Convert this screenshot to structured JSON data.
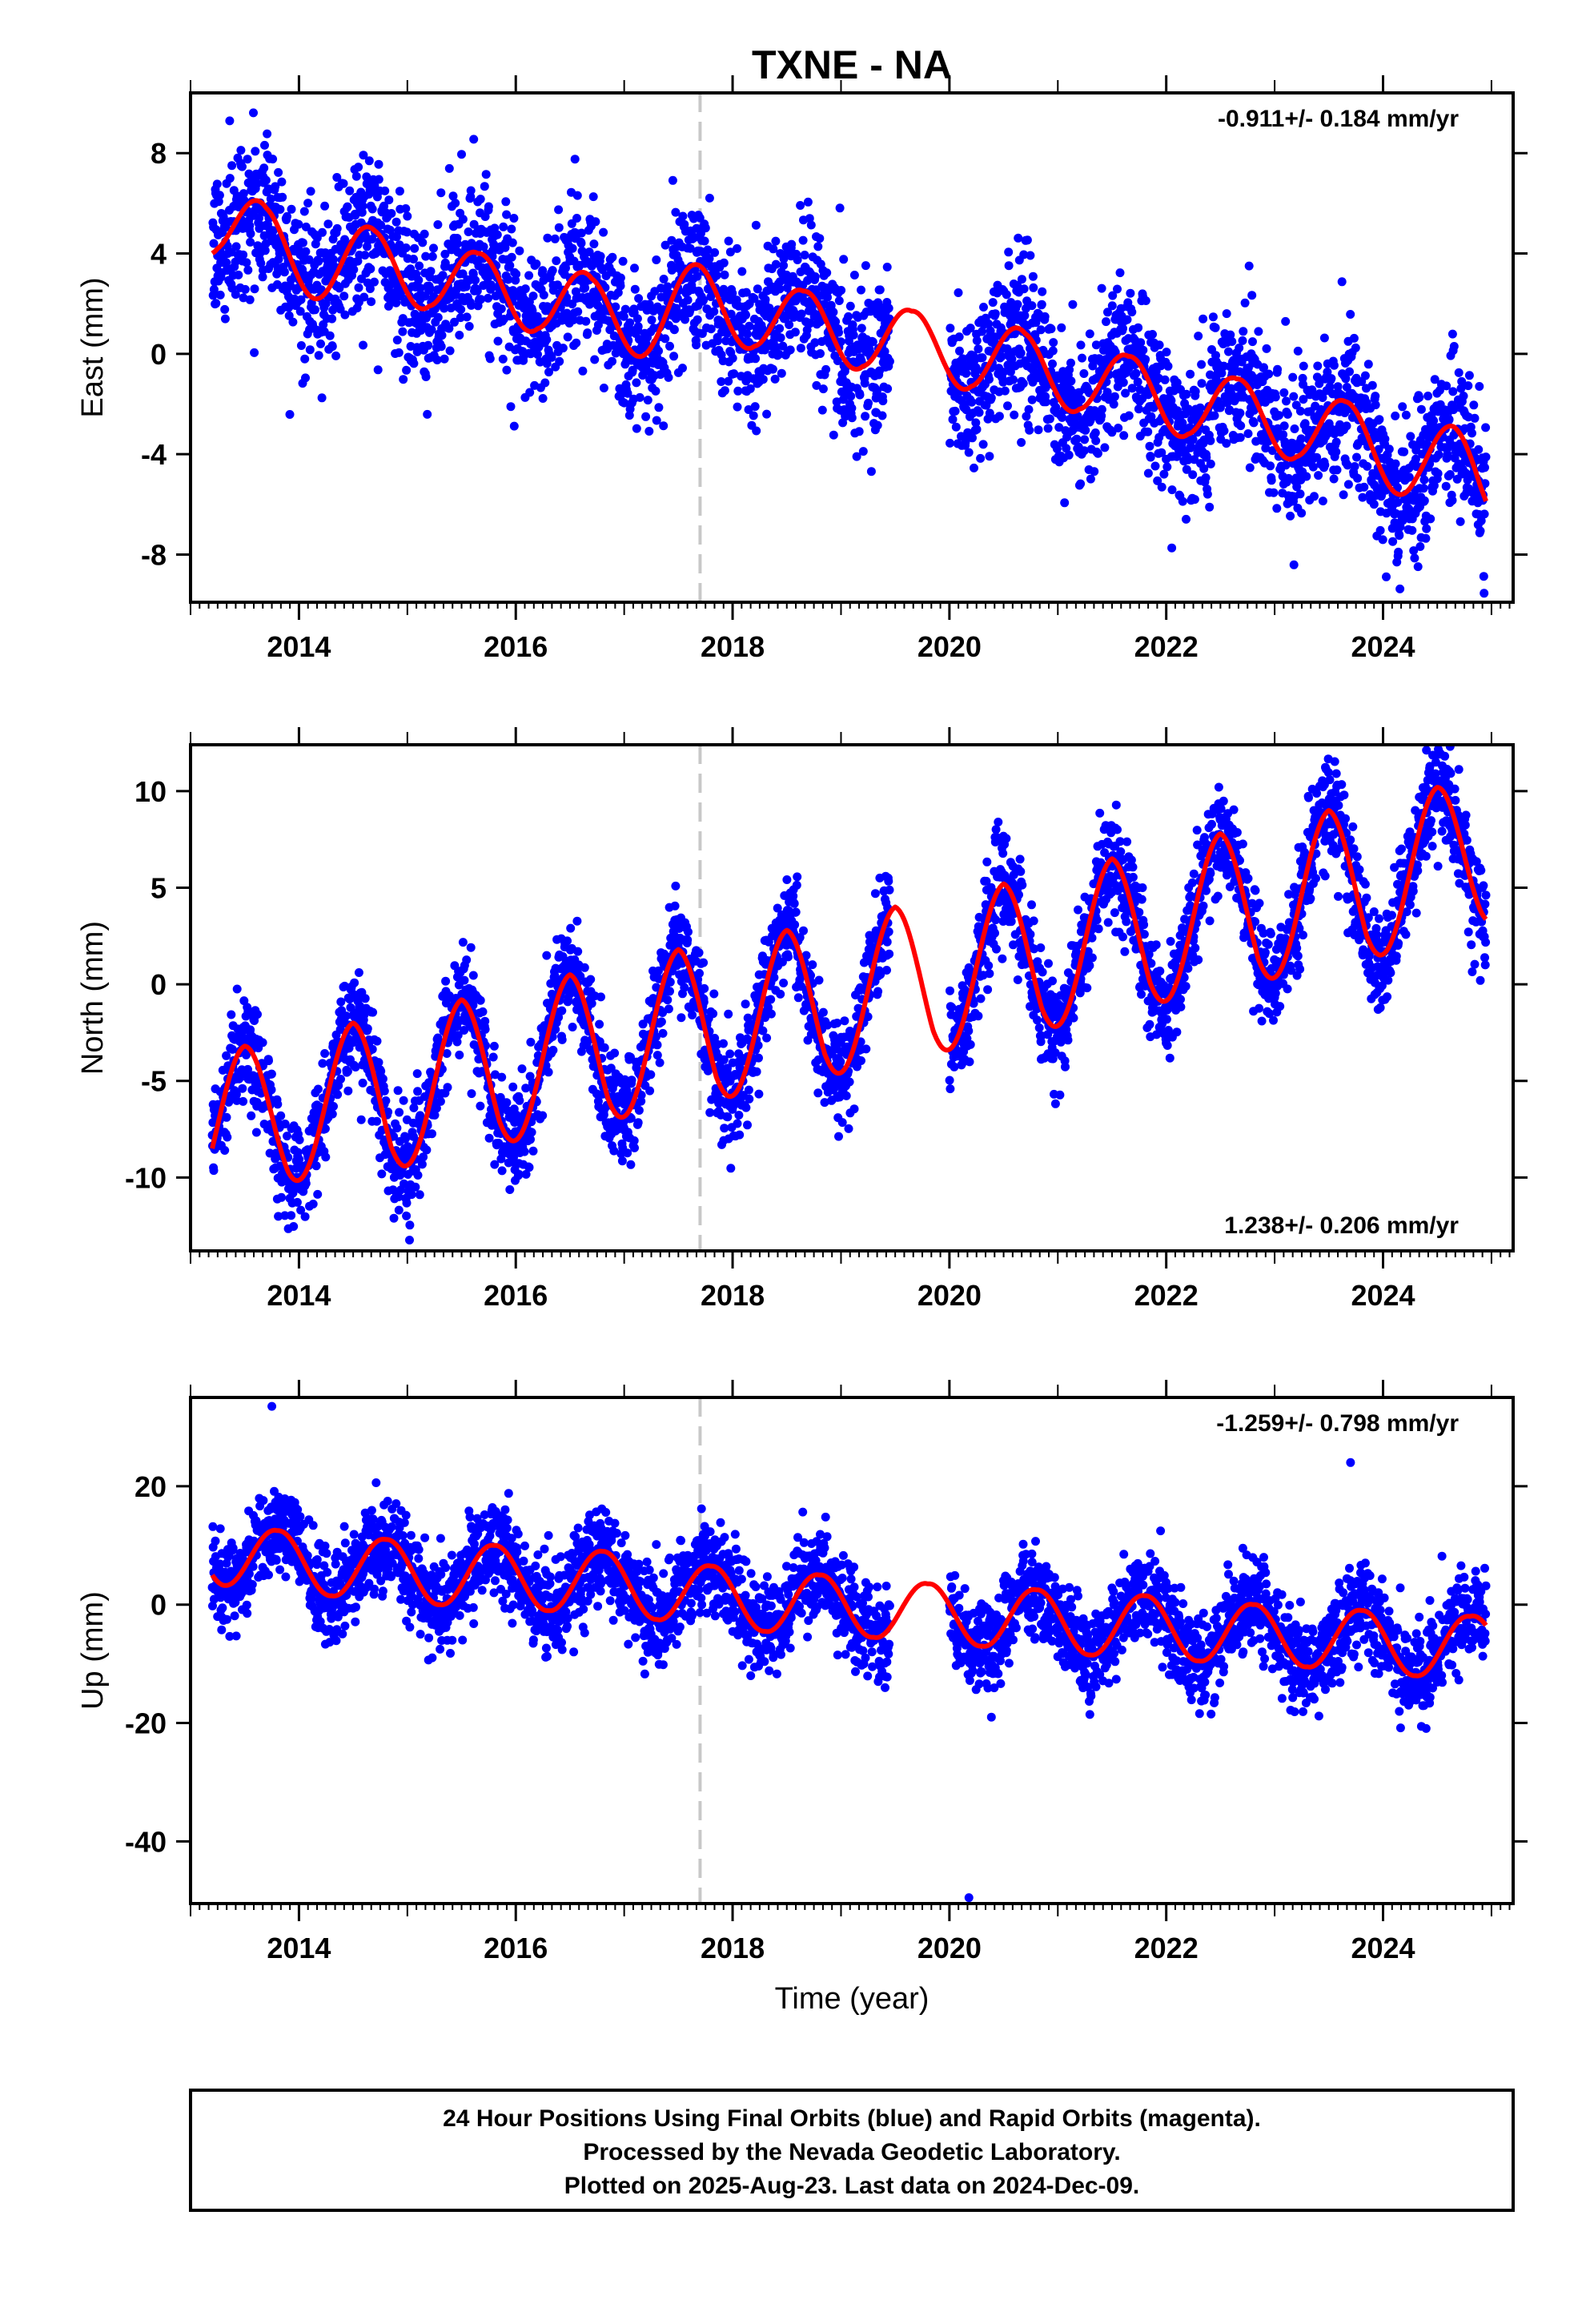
{
  "chart_data": [
    {
      "type": "scatter",
      "title": "TXNE - NA",
      "ylabel": "East (mm)",
      "xlabel": "",
      "xlim": [
        2013.0,
        2025.2
      ],
      "ylim": [
        -9.9,
        10.4
      ],
      "xticks": [
        2014,
        2016,
        2018,
        2020,
        2022,
        2024
      ],
      "xtick_labels": [
        "2014",
        "2016",
        "2018",
        "2020",
        "2022",
        "2024"
      ],
      "yticks": [
        -8,
        -4,
        0,
        4,
        8
      ],
      "ytick_labels": [
        "-8",
        "-4",
        "0",
        "4",
        "8"
      ],
      "rate_text": "-0.911+/- 0.184 mm/yr",
      "rate_position": "top-right",
      "equipment_change_line": 2017.7,
      "colors": {
        "points": "#0000ff",
        "model": "#ff0000",
        "change_line": "#c8c8c8"
      },
      "data_gap": [
        2019.45,
        2020.0
      ],
      "points_note": "approximately 4100 daily positions; regenerated from the trend + seasonal model with scatter",
      "model": {
        "start": 2013.2,
        "end": 2024.95,
        "rate": -0.911,
        "offset_at_start": 4.2,
        "seasonal_amplitude": 1.7,
        "seasonal_phase_peak": 0.65,
        "noise_sd": 1.5
      },
      "series": [
        {
          "values_x": [
            2013.25,
            2013.7,
            2014.3,
            2014.7,
            2015.2,
            2015.65,
            2016.2,
            2016.7,
            2017.2,
            2017.7,
            2018.2,
            2018.65,
            2019.2,
            2019.65,
            2020.2,
            2020.7,
            2021.2,
            2021.65,
            2022.2,
            2022.65,
            2023.2,
            2023.65,
            2024.3,
            2024.65,
            2024.9
          ],
          "values_y": [
            4.2,
            5.8,
            2.8,
            4.9,
            1.9,
            4.0,
            1.0,
            3.0,
            0.0,
            3.5,
            0.3,
            2.5,
            -0.5,
            1.7,
            -1.3,
            0.8,
            -2.2,
            -0.1,
            -3.2,
            -1.0,
            -4.1,
            -1.9,
            -5.0,
            -2.9,
            -5.3
          ]
        }
      ]
    },
    {
      "type": "scatter",
      "title": "",
      "ylabel": "North (mm)",
      "xlabel": "",
      "xlim": [
        2013.0,
        2025.2
      ],
      "ylim": [
        -13.8,
        12.4
      ],
      "xticks": [
        2014,
        2016,
        2018,
        2020,
        2022,
        2024
      ],
      "xtick_labels": [
        "2014",
        "2016",
        "2018",
        "2020",
        "2022",
        "2024"
      ],
      "yticks": [
        -10,
        -5,
        0,
        5,
        10
      ],
      "ytick_labels": [
        "-10",
        "-5",
        "0",
        "5",
        "10"
      ],
      "rate_text": "1.238+/- 0.206 mm/yr",
      "rate_position": "bottom-right",
      "equipment_change_line": 2017.7,
      "colors": {
        "points": "#0000ff",
        "model": "#ff0000",
        "change_line": "#c8c8c8"
      },
      "data_gap": [
        2019.45,
        2020.0
      ],
      "model": {
        "start": 2013.2,
        "end": 2024.95,
        "rate": 1.238,
        "offset_at_start": -8.5,
        "seasonal_amplitude": 3.5,
        "seasonal_phase_peak": 0.5,
        "noise_sd": 1.3
      },
      "series": [
        {
          "values_x": [
            2013.2,
            2013.5,
            2013.9,
            2014.5,
            2014.85,
            2015.5,
            2015.85,
            2016.5,
            2016.85,
            2017.5,
            2017.85,
            2018.5,
            2018.85,
            2019.5,
            2019.85,
            2020.5,
            2020.85,
            2021.5,
            2021.85,
            2022.5,
            2022.85,
            2023.5,
            2023.85,
            2024.5,
            2024.9
          ],
          "values_y": [
            -8.5,
            -3.2,
            -9.7,
            -2.0,
            -8.4,
            -0.8,
            -7.1,
            0.5,
            -5.9,
            1.8,
            -4.8,
            2.8,
            -3.6,
            4.0,
            -2.4,
            5.2,
            -1.2,
            6.5,
            0.1,
            7.8,
            1.3,
            9.0,
            2.5,
            10.2,
            3.8
          ]
        }
      ]
    },
    {
      "type": "scatter",
      "title": "",
      "ylabel": "Up (mm)",
      "xlabel": "Time (year)",
      "xlim": [
        2013.0,
        2025.2
      ],
      "ylim": [
        -50.5,
        35.0
      ],
      "xticks": [
        2014,
        2016,
        2018,
        2020,
        2022,
        2024
      ],
      "xtick_labels": [
        "2014",
        "2016",
        "2018",
        "2020",
        "2022",
        "2024"
      ],
      "yticks": [
        -40,
        -20,
        0,
        20
      ],
      "ytick_labels": [
        "-40",
        "-20",
        "0",
        "20"
      ],
      "rate_text": "-1.259+/- 0.798 mm/yr",
      "rate_position": "top-right",
      "equipment_change_line": 2017.7,
      "colors": {
        "points": "#0000ff",
        "model": "#ff0000",
        "change_line": "#c8c8c8"
      },
      "data_gap": [
        2019.45,
        2020.0
      ],
      "outliers": [
        [
          2013.75,
          33.5
        ],
        [
          2020.18,
          -49.5
        ],
        [
          2023.7,
          24.0
        ]
      ],
      "model": {
        "start": 2013.2,
        "end": 2024.95,
        "rate": -1.259,
        "offset_at_start": 6.0,
        "seasonal_amplitude": 6.0,
        "seasonal_phase_peak": 0.8,
        "noise_sd": 4.0
      },
      "series": [
        {
          "values_x": [
            2013.2,
            2013.8,
            2014.3,
            2014.8,
            2015.3,
            2015.8,
            2016.3,
            2016.8,
            2017.3,
            2017.8,
            2018.3,
            2018.8,
            2019.3,
            2019.8,
            2020.3,
            2020.8,
            2021.3,
            2021.8,
            2022.3,
            2022.8,
            2023.3,
            2023.8,
            2024.3,
            2024.8,
            2024.95
          ],
          "values_y": [
            5.0,
            12.5,
            1.5,
            11.0,
            0.0,
            10.0,
            -1.0,
            9.0,
            -2.5,
            6.5,
            -4.5,
            5.0,
            -5.5,
            3.5,
            -7.0,
            2.5,
            -8.5,
            1.5,
            -9.5,
            0.0,
            -10.5,
            -1.0,
            -12.0,
            -2.0,
            -3.5
          ]
        }
      ]
    }
  ],
  "caption": {
    "line1": "24 Hour Positions Using Final Orbits (blue) and Rapid Orbits (magenta).",
    "line2": "Processed by the Nevada Geodetic Laboratory.",
    "line3": "Plotted on 2025-Aug-23. Last data on 2024-Dec-09."
  }
}
